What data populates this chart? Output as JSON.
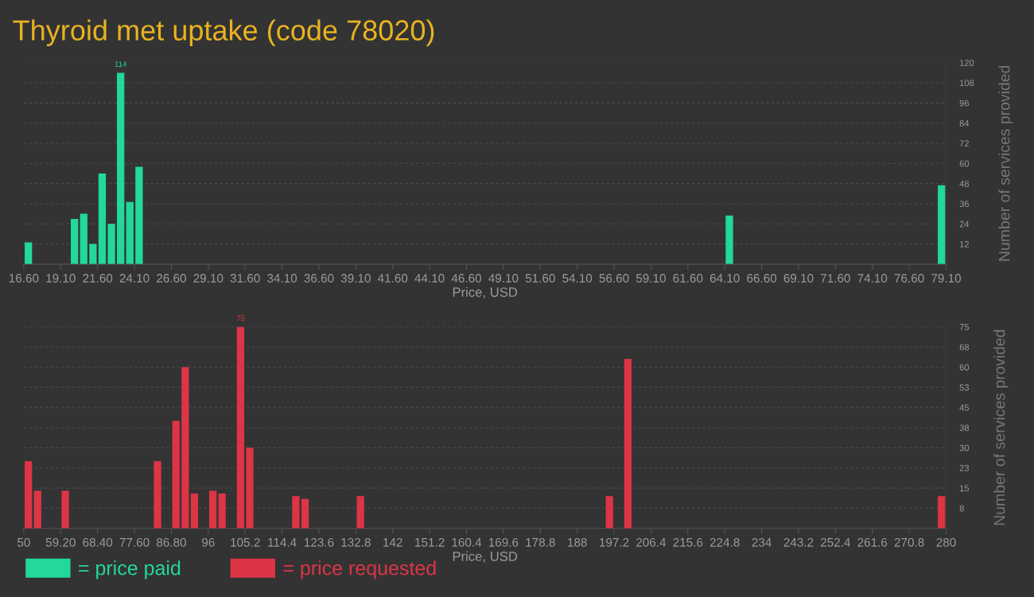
{
  "chart_data": [
    {
      "type": "histogram",
      "title": "Thyroid met uptake (code 78020)",
      "xlabel": "Price, USD",
      "ylabel": "Number of services provided",
      "grid": "y",
      "legend": "bottom",
      "bins": [
        16.6,
        17.225,
        17.85,
        18.475,
        19.1,
        19.725,
        20.35,
        20.975,
        21.6,
        22.225,
        22.85,
        23.475,
        24.1,
        24.725,
        25.35,
        25.975,
        26.6,
        27.225,
        27.85,
        28.475,
        29.1,
        29.725,
        30.35,
        30.975,
        31.6,
        32.225,
        32.85,
        33.475,
        34.1,
        34.725,
        35.35,
        35.975,
        36.6,
        37.225,
        37.85,
        38.475,
        39.1,
        39.725,
        40.35,
        40.975,
        41.6,
        42.225,
        42.85,
        43.475,
        44.1,
        44.725,
        45.35,
        45.975,
        46.6,
        47.225,
        47.85,
        48.475,
        49.1,
        49.725,
        50.35,
        50.975,
        51.6,
        52.225,
        52.85,
        53.475,
        54.1,
        54.725,
        55.35,
        55.975,
        56.6,
        57.225,
        57.85,
        58.475,
        59.1,
        59.725,
        60.35,
        60.975,
        61.6,
        62.225,
        62.85,
        63.475,
        64.1,
        64.725,
        65.35,
        65.975,
        66.6,
        67.225,
        67.85,
        68.475,
        69.1,
        69.725,
        70.35,
        70.975,
        71.6,
        72.225,
        72.85,
        73.475,
        74.1,
        74.725,
        75.35,
        75.975,
        76.6,
        77.225,
        77.85,
        78.475,
        79.1
      ],
      "series": [
        {
          "name": "= price paid",
          "color": "#22d89a",
          "values": [
            13,
            0,
            0,
            0,
            0,
            27,
            30,
            12,
            54,
            24,
            114,
            37,
            58,
            0,
            0,
            0,
            0,
            0,
            0,
            0,
            0,
            0,
            0,
            0,
            0,
            0,
            0,
            0,
            0,
            0,
            0,
            0,
            0,
            0,
            0,
            0,
            0,
            0,
            0,
            0,
            0,
            0,
            0,
            0,
            0,
            0,
            0,
            0,
            0,
            0,
            0,
            0,
            0,
            0,
            0,
            0,
            0,
            0,
            0,
            0,
            0,
            0,
            0,
            0,
            0,
            0,
            0,
            0,
            0,
            0,
            0,
            0,
            0,
            0,
            0,
            0,
            29,
            0,
            0,
            0,
            0,
            0,
            0,
            0,
            0,
            0,
            0,
            0,
            0,
            0,
            0,
            0,
            0,
            0,
            0,
            0,
            0,
            0,
            0,
            47
          ]
        }
      ],
      "annotations": [
        {
          "text": "114",
          "x": 23.1625,
          "y": 114
        }
      ],
      "xlim": [
        16.6,
        79.1
      ],
      "xticks": [
        {
          "value": 16.6,
          "label": "16.60"
        },
        {
          "value": 19.1,
          "label": "19.10"
        },
        {
          "value": 21.6,
          "label": "21.60"
        },
        {
          "value": 24.1,
          "label": "24.10"
        },
        {
          "value": 26.6,
          "label": "26.60"
        },
        {
          "value": 29.1,
          "label": "29.10"
        },
        {
          "value": 31.6,
          "label": "31.60"
        },
        {
          "value": 34.1,
          "label": "34.10"
        },
        {
          "value": 36.6,
          "label": "36.60"
        },
        {
          "value": 39.1,
          "label": "39.10"
        },
        {
          "value": 41.6,
          "label": "41.60"
        },
        {
          "value": 44.1,
          "label": "44.10"
        },
        {
          "value": 46.6,
          "label": "46.60"
        },
        {
          "value": 49.1,
          "label": "49.10"
        },
        {
          "value": 51.6,
          "label": "51.60"
        },
        {
          "value": 54.1,
          "label": "54.10"
        },
        {
          "value": 56.6,
          "label": "56.60"
        },
        {
          "value": 59.1,
          "label": "59.10"
        },
        {
          "value": 61.6,
          "label": "61.60"
        },
        {
          "value": 64.1,
          "label": "64.10"
        },
        {
          "value": 66.6,
          "label": "66.60"
        },
        {
          "value": 69.1,
          "label": "69.10"
        },
        {
          "value": 71.6,
          "label": "71.60"
        },
        {
          "value": 74.1,
          "label": "74.10"
        },
        {
          "value": 76.6,
          "label": "76.60"
        },
        {
          "value": 79.1,
          "label": "79.10"
        }
      ],
      "ylim": [
        0,
        120
      ],
      "yticks": [
        12,
        24,
        36,
        48,
        60,
        72,
        84,
        96,
        108,
        120
      ]
    },
    {
      "type": "histogram",
      "xlabel": "Price, USD",
      "ylabel": "Number of services provided",
      "grid": "y",
      "legend": "bottom",
      "bins": [
        50,
        52.3,
        54.6,
        56.9,
        59.2,
        61.5,
        63.8,
        66.1,
        68.4,
        70.7,
        73,
        75.3,
        77.6,
        79.9,
        82.2,
        84.5,
        86.8,
        89.1,
        91.4,
        93.7,
        96,
        98.3,
        100.6,
        102.9,
        105.2,
        107.5,
        109.8,
        112.1,
        114.4,
        116.7,
        119,
        121.3,
        123.6,
        125.9,
        128.2,
        130.5,
        132.8,
        135.1,
        137.4,
        139.7,
        142,
        144.3,
        146.6,
        148.9,
        151.2,
        153.5,
        155.8,
        158.1,
        160.4,
        162.7,
        165,
        167.3,
        169.6,
        171.9,
        174.2,
        176.5,
        178.8,
        181.1,
        183.4,
        185.7,
        188,
        190.3,
        192.6,
        194.9,
        197.2,
        199.5,
        201.8,
        204.1,
        206.4,
        208.7,
        211,
        213.3,
        215.6,
        217.9,
        220.2,
        222.5,
        224.8,
        227.1,
        229.4,
        231.7,
        234,
        236.3,
        238.6,
        240.9,
        243.2,
        245.5,
        247.8,
        250.1,
        252.4,
        254.7,
        257,
        259.3,
        261.6,
        263.9,
        266.2,
        268.5,
        270.8,
        273.1,
        275.4,
        277.7,
        280
      ],
      "series": [
        {
          "name": "= price requested",
          "color": "#dc3545",
          "values": [
            25,
            14,
            0,
            0,
            14,
            0,
            0,
            0,
            0,
            0,
            0,
            0,
            0,
            0,
            25,
            0,
            40,
            60,
            13,
            0,
            14,
            13,
            0,
            75,
            30,
            0,
            0,
            0,
            0,
            12,
            11,
            0,
            0,
            0,
            0,
            0,
            12,
            0,
            0,
            0,
            0,
            0,
            0,
            0,
            0,
            0,
            0,
            0,
            0,
            0,
            0,
            0,
            0,
            0,
            0,
            0,
            0,
            0,
            0,
            0,
            0,
            0,
            0,
            12,
            0,
            63,
            0,
            0,
            0,
            0,
            0,
            0,
            0,
            0,
            0,
            0,
            0,
            0,
            0,
            0,
            0,
            0,
            0,
            0,
            0,
            0,
            0,
            0,
            0,
            0,
            0,
            0,
            0,
            0,
            0,
            0,
            0,
            0,
            0,
            12
          ]
        }
      ],
      "annotations": [
        {
          "text": "75",
          "x": 104.05,
          "y": 75
        }
      ],
      "xlim": [
        50,
        280
      ],
      "xticks": [
        50,
        {
          "value": 59.2,
          "label": "59.20"
        },
        {
          "value": 68.4,
          "label": "68.40"
        },
        {
          "value": 77.6,
          "label": "77.60"
        },
        {
          "value": 86.8,
          "label": "86.80"
        },
        96,
        105.2,
        114.4,
        123.6,
        132.8,
        142,
        151.2,
        160.4,
        169.6,
        178.8,
        188,
        197.2,
        206.4,
        215.6,
        224.8,
        234,
        243.2,
        252.4,
        261.6,
        270.8,
        280
      ],
      "ylim": [
        0,
        75
      ],
      "yticks": [
        {
          "value": 7.5,
          "label": "8"
        },
        {
          "value": 15,
          "label": "15"
        },
        {
          "value": 22.5,
          "label": "23"
        },
        {
          "value": 30,
          "label": "30"
        },
        {
          "value": 37.5,
          "label": "38"
        },
        {
          "value": 45,
          "label": "45"
        },
        {
          "value": 52.5,
          "label": "53"
        },
        {
          "value": 60,
          "label": "60"
        },
        {
          "value": 67.5,
          "label": "68"
        },
        {
          "value": 75,
          "label": "75"
        }
      ]
    }
  ]
}
